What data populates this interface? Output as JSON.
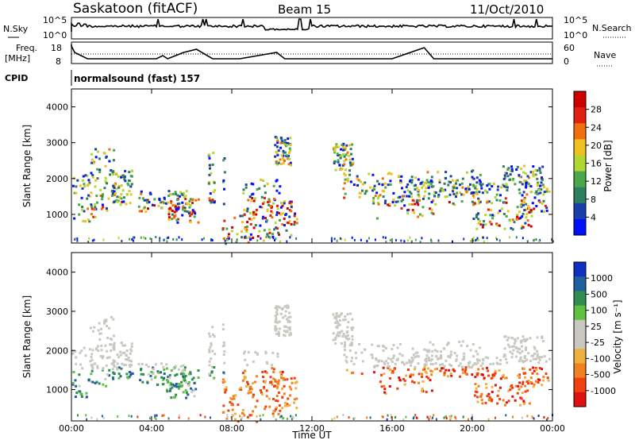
{
  "header": {
    "station": "Saskatoon  (fitACF)",
    "beam": "Beam 15",
    "date": "11/Oct/2010"
  },
  "top_panels": {
    "nsky_label": "N.Sky",
    "nsearch_label": "N.Search",
    "noise_ticks": [
      "10^5",
      "10^0"
    ],
    "freq_label_1": "Freq.",
    "freq_label_2": "[MHz]",
    "freq_ticks": [
      "18",
      "8"
    ],
    "nave_label": "Nave",
    "nave_ticks": [
      "60",
      "0"
    ],
    "cpid_label": "CPID",
    "cpid_value": "normalsound (fast) 157"
  },
  "colors": {
    "power": [
      "#0010ff",
      "#1b3fa8",
      "#2e7f5e",
      "#4aa84a",
      "#b0d830",
      "#f0c020",
      "#f07010",
      "#e02010",
      "#d00000"
    ],
    "velocity": [
      "#e01010",
      "#f04010",
      "#f08020",
      "#f0b040",
      "#c8c8c0",
      "#c8c8c0",
      "#60c040",
      "#2e8f4e",
      "#2060a0",
      "#1030c0"
    ]
  },
  "chart_data": [
    {
      "type": "heatmap",
      "name": "power",
      "ylabel": "Slant Range [km]",
      "yticks": [
        "1000",
        "2000",
        "3000",
        "4000"
      ],
      "colorbar_label": "Power [dB]",
      "colorbar_ticks": [
        "4",
        "8",
        "12",
        "16",
        "20",
        "24",
        "28"
      ],
      "ylim": [
        200,
        4500
      ]
    },
    {
      "type": "heatmap",
      "name": "velocity",
      "ylabel": "Slant Range [km]",
      "yticks": [
        "1000",
        "2000",
        "3000",
        "4000"
      ],
      "colorbar_label": "Velocity  [m s⁻¹]",
      "colorbar_ticks": [
        "1000",
        "500",
        "100",
        "25",
        "-25",
        "-100",
        "-500",
        "-1000"
      ],
      "ylim": [
        200,
        4500
      ]
    }
  ],
  "xaxis": {
    "ticks": [
      "00:00",
      "04:00",
      "08:00",
      "12:00",
      "16:00",
      "20:00",
      "00:00"
    ],
    "label": "Time UT",
    "range_hours": [
      0,
      24
    ]
  }
}
